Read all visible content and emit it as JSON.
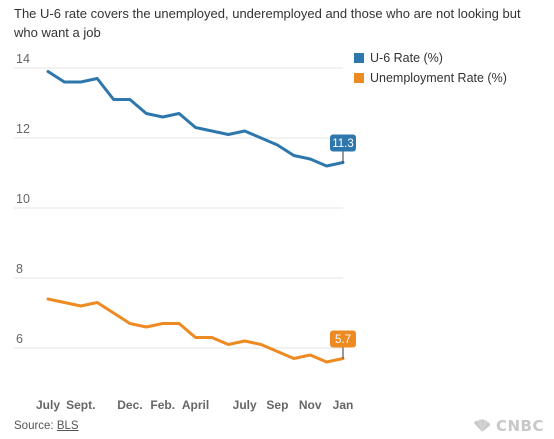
{
  "subtitle": "The U-6 rate covers the unemployed, underemployed and those who are not looking but who want a job",
  "source": {
    "label": "Source:",
    "link_text": "BLS"
  },
  "logo": {
    "text": "CNBC",
    "icon": "peacock-icon"
  },
  "colors": {
    "u6": "#2e77ad",
    "unemployment": "#ee8a22",
    "grid": "#e6e6e6",
    "axis_text": "#666666"
  },
  "chart_data": {
    "type": "line",
    "title": "",
    "xlabel": "",
    "ylabel": "",
    "ylim": [
      5.2,
      14.4
    ],
    "yticks": [
      6,
      8,
      10,
      12,
      14
    ],
    "grid": true,
    "legend_placement": "top-right",
    "x_tick_labels": [
      "July",
      "Sept.",
      "Dec.",
      "Feb.",
      "April",
      "July",
      "Sep",
      "Nov",
      "Jan"
    ],
    "x_tick_positions": [
      0,
      2,
      5,
      7,
      9,
      12,
      14,
      16,
      18
    ],
    "x": [
      0,
      1,
      2,
      3,
      4,
      5,
      6,
      7,
      8,
      9,
      10,
      11,
      12,
      13,
      14,
      15,
      16,
      17,
      18
    ],
    "series": [
      {
        "name": "U-6 Rate (%)",
        "values": [
          13.9,
          13.6,
          13.6,
          13.7,
          13.1,
          13.1,
          12.7,
          12.6,
          12.7,
          12.3,
          12.2,
          12.1,
          12.2,
          12.0,
          11.8,
          11.5,
          11.4,
          11.2,
          11.3
        ],
        "end_label": "11.3"
      },
      {
        "name": "Unemployment Rate (%)",
        "values": [
          7.4,
          7.3,
          7.2,
          7.3,
          7.0,
          6.7,
          6.6,
          6.7,
          6.7,
          6.3,
          6.3,
          6.1,
          6.2,
          6.1,
          5.9,
          5.7,
          5.8,
          5.6,
          5.7
        ],
        "end_label": "5.7"
      }
    ]
  }
}
